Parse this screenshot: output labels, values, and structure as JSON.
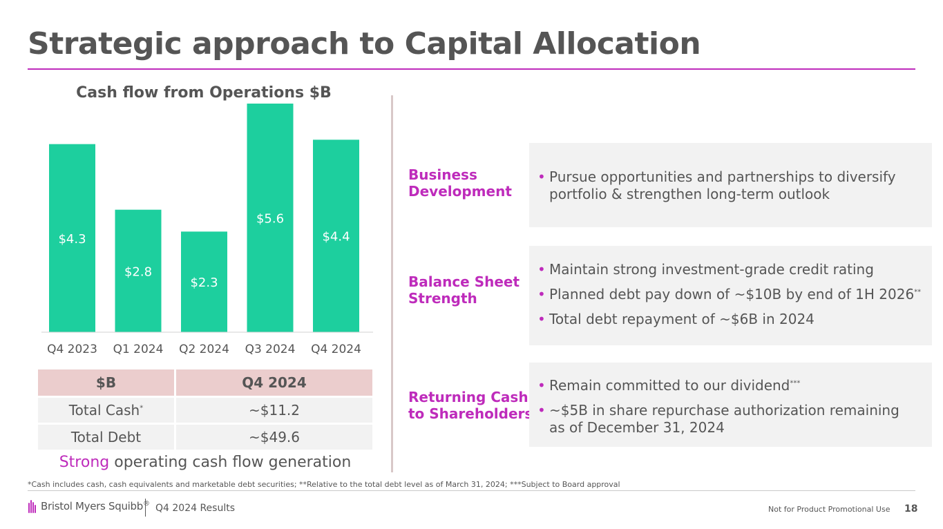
{
  "title": "Strategic approach to Capital Allocation",
  "colors": {
    "accent": "#be2bbb",
    "bar": "#1dcf9e",
    "text": "#555555",
    "panel": "#f2f2f2",
    "table_header": "#ebcdcd"
  },
  "chart_data": {
    "type": "bar",
    "title": "Cash flow from Operations $B",
    "categories": [
      "Q4 2023",
      "Q1 2024",
      "Q2 2024",
      "Q3 2024",
      "Q4 2024"
    ],
    "values": [
      4.3,
      2.8,
      2.3,
      5.6,
      4.4
    ],
    "value_labels": [
      "$4.3",
      "$2.8",
      "$2.3",
      "$5.6",
      "$4.4"
    ],
    "xlabel": "",
    "ylabel": "",
    "ylim": [
      0,
      5.1
    ],
    "grid": false
  },
  "cash_table": {
    "headers": [
      "$B",
      "Q4 2024"
    ],
    "rows": [
      {
        "label": "Total Cash",
        "marker": "*",
        "value": "~$11.2"
      },
      {
        "label": "Total Debt",
        "marker": "",
        "value": "~$49.6"
      }
    ]
  },
  "tagline": {
    "accent": "Strong",
    "rest": " operating cash flow generation"
  },
  "sections": [
    {
      "label_lines": [
        "Business",
        "Development"
      ],
      "bullets": [
        {
          "text": "Pursue opportunities and partnerships to diversify portfolio & strengthen long-term outlook",
          "marker": ""
        }
      ]
    },
    {
      "label_lines": [
        "Balance Sheet",
        "Strength"
      ],
      "bullets": [
        {
          "text": "Maintain strong investment-grade credit rating",
          "marker": ""
        },
        {
          "text": "Planned debt pay down of ~$10B by end of 1H 2026",
          "marker": "**"
        },
        {
          "text": "Total debt repayment of ~$6B in 2024",
          "marker": ""
        }
      ]
    },
    {
      "label_lines": [
        "Returning Cash",
        "to Shareholders"
      ],
      "bullets": [
        {
          "text": "Remain committed to our dividend",
          "marker": "***"
        },
        {
          "text": "~$5B in share repurchase authorization remaining as of December 31, 2024",
          "marker": ""
        }
      ]
    }
  ],
  "footnote": "*Cash includes cash, cash equivalents and marketable debt securities; **Relative to the total debt level as of March 31, 2024; ***Subject to Board approval",
  "footer": {
    "logo_text": "Bristol Myers Squibb",
    "logo_mark": "®",
    "doc_name": "Q4 2024 Results",
    "disclaimer": "Not for Product Promotional Use",
    "page_number": "18"
  }
}
